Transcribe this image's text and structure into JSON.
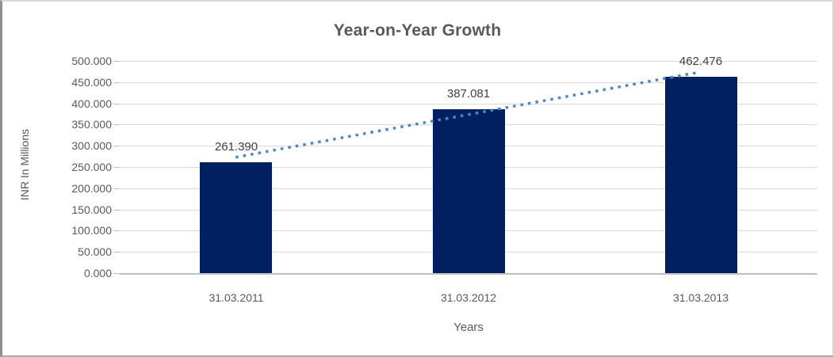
{
  "chart_data": {
    "type": "bar",
    "title": "Year-on-Year Growth",
    "xlabel": "Years",
    "ylabel": "INR In Millions",
    "categories": [
      "31.03.2011",
      "31.03.2012",
      "31.03.2013"
    ],
    "values": [
      261.39,
      387.081,
      462.476
    ],
    "data_labels": [
      "261.390",
      "387.081",
      "462.476"
    ],
    "ylim": [
      0,
      500
    ],
    "ytick_step": 50,
    "ytick_decimals": 3,
    "grid": true,
    "legend": false,
    "trendline": {
      "type": "linear",
      "style": "dotted"
    },
    "colors": {
      "bar": "#002060",
      "trendline": "#4a86c8",
      "gridline": "#d9d9d9",
      "axis_line": "#c0c0c0",
      "tick": "#bfbfbf",
      "text": "#595959",
      "data_label_text": "#404040"
    }
  }
}
